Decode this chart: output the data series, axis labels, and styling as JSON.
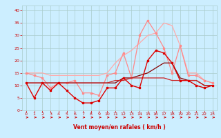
{
  "x": [
    0,
    1,
    2,
    3,
    4,
    5,
    6,
    7,
    8,
    9,
    10,
    11,
    12,
    13,
    14,
    15,
    16,
    17,
    18,
    19,
    20,
    21,
    22,
    23
  ],
  "series": [
    {
      "y": [
        11,
        5,
        11,
        8,
        11,
        8,
        5,
        3,
        3,
        4,
        9,
        9,
        13,
        10,
        9,
        20,
        24,
        23,
        19,
        12,
        12,
        10,
        9,
        10
      ],
      "color": "#dd0000",
      "lw": 1.0,
      "marker": "s",
      "ms": 1.8,
      "zorder": 5
    },
    {
      "y": [
        11,
        11,
        11,
        11,
        11,
        11,
        11,
        11,
        11,
        11,
        11,
        11,
        13,
        13,
        14,
        15,
        17,
        19,
        19,
        13,
        12,
        12,
        10,
        10
      ],
      "color": "#880000",
      "lw": 0.9,
      "marker": null,
      "ms": 0,
      "zorder": 4
    },
    {
      "y": [
        11,
        11,
        11,
        11,
        11,
        11,
        11,
        11,
        11,
        11,
        11,
        12,
        12,
        13,
        13,
        13,
        13,
        13,
        12,
        12,
        12,
        12,
        10,
        10
      ],
      "color": "#cc2222",
      "lw": 0.9,
      "marker": null,
      "ms": 0,
      "zorder": 4
    },
    {
      "y": [
        15,
        14,
        13,
        9,
        11,
        11,
        12,
        7,
        7,
        6,
        14,
        15,
        23,
        13,
        30,
        36,
        31,
        25,
        15,
        26,
        14,
        14,
        12,
        11
      ],
      "color": "#ff8888",
      "lw": 0.9,
      "marker": "s",
      "ms": 1.8,
      "zorder": 3
    },
    {
      "y": [
        15,
        15,
        15,
        14,
        14,
        14,
        14,
        14,
        14,
        14,
        15,
        19,
        22,
        24,
        27,
        30,
        31,
        35,
        34,
        26,
        15,
        15,
        12,
        11
      ],
      "color": "#ffaaaa",
      "lw": 0.9,
      "marker": null,
      "ms": 0,
      "zorder": 2
    }
  ],
  "xlim": [
    -0.5,
    23.5
  ],
  "ylim": [
    0,
    42
  ],
  "yticks": [
    0,
    5,
    10,
    15,
    20,
    25,
    30,
    35,
    40
  ],
  "xticks": [
    0,
    1,
    2,
    3,
    4,
    5,
    6,
    7,
    8,
    9,
    10,
    11,
    12,
    13,
    14,
    15,
    16,
    17,
    18,
    19,
    20,
    21,
    22,
    23
  ],
  "xlabel": "Vent moyen/en rafales ( km/h )",
  "bg_color": "#cceeff",
  "grid_color": "#aacccc",
  "tick_color": "#cc0000",
  "label_color": "#cc0000"
}
